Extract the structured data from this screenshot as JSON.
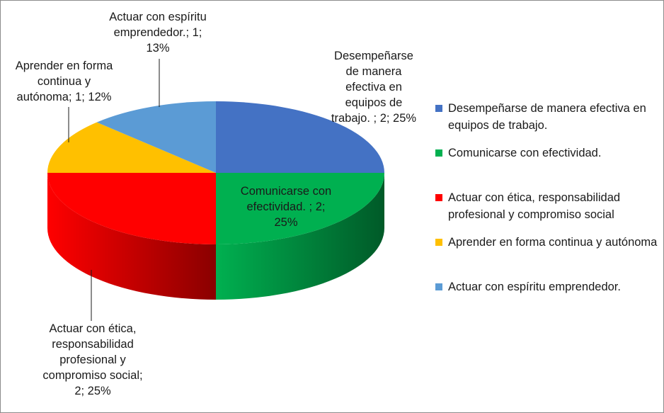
{
  "chart_data": {
    "type": "pie",
    "three_d": true,
    "legend_position": "right",
    "slices": [
      {
        "label": "Desempeñarse de manera efectiva en equipos de trabajo.",
        "value": 2,
        "percent": "25%",
        "color": "#4472C4",
        "side_color": "#253d6b",
        "data_label": "Desempeñarse\nde manera\nefectiva en\nequipos de\ntrabajo. ; 2; 25%"
      },
      {
        "label": "Comunicarse con efectividad.",
        "value": 2,
        "percent": "25%",
        "color": "#00B050",
        "side_color": "#005a28",
        "data_label": "Comunicarse con\nefectividad.  ; 2;\n25%"
      },
      {
        "label": "Actuar con ética, responsabilidad profesional y compromiso social",
        "value": 2,
        "percent": "25%",
        "color": "#FF0000",
        "side_color": "#8a0000",
        "data_label": "Actuar con ética,\nresponsabilidad\nprofesional y\ncompromiso social;\n2; 25%"
      },
      {
        "label": "Aprender en forma continua y autónoma",
        "value": 1,
        "percent": "12%",
        "color": "#FFC000",
        "side_color": "#8a6800",
        "data_label": "Aprender en forma\ncontinua y\nautónoma; 1; 12%"
      },
      {
        "label": "Actuar con espíritu emprendedor.",
        "value": 1,
        "percent": "13%",
        "color": "#5B9BD5",
        "side_color": "#2e5a82",
        "data_label": "Actuar con espíritu\nemprendedor.; 1;\n13%"
      }
    ]
  }
}
